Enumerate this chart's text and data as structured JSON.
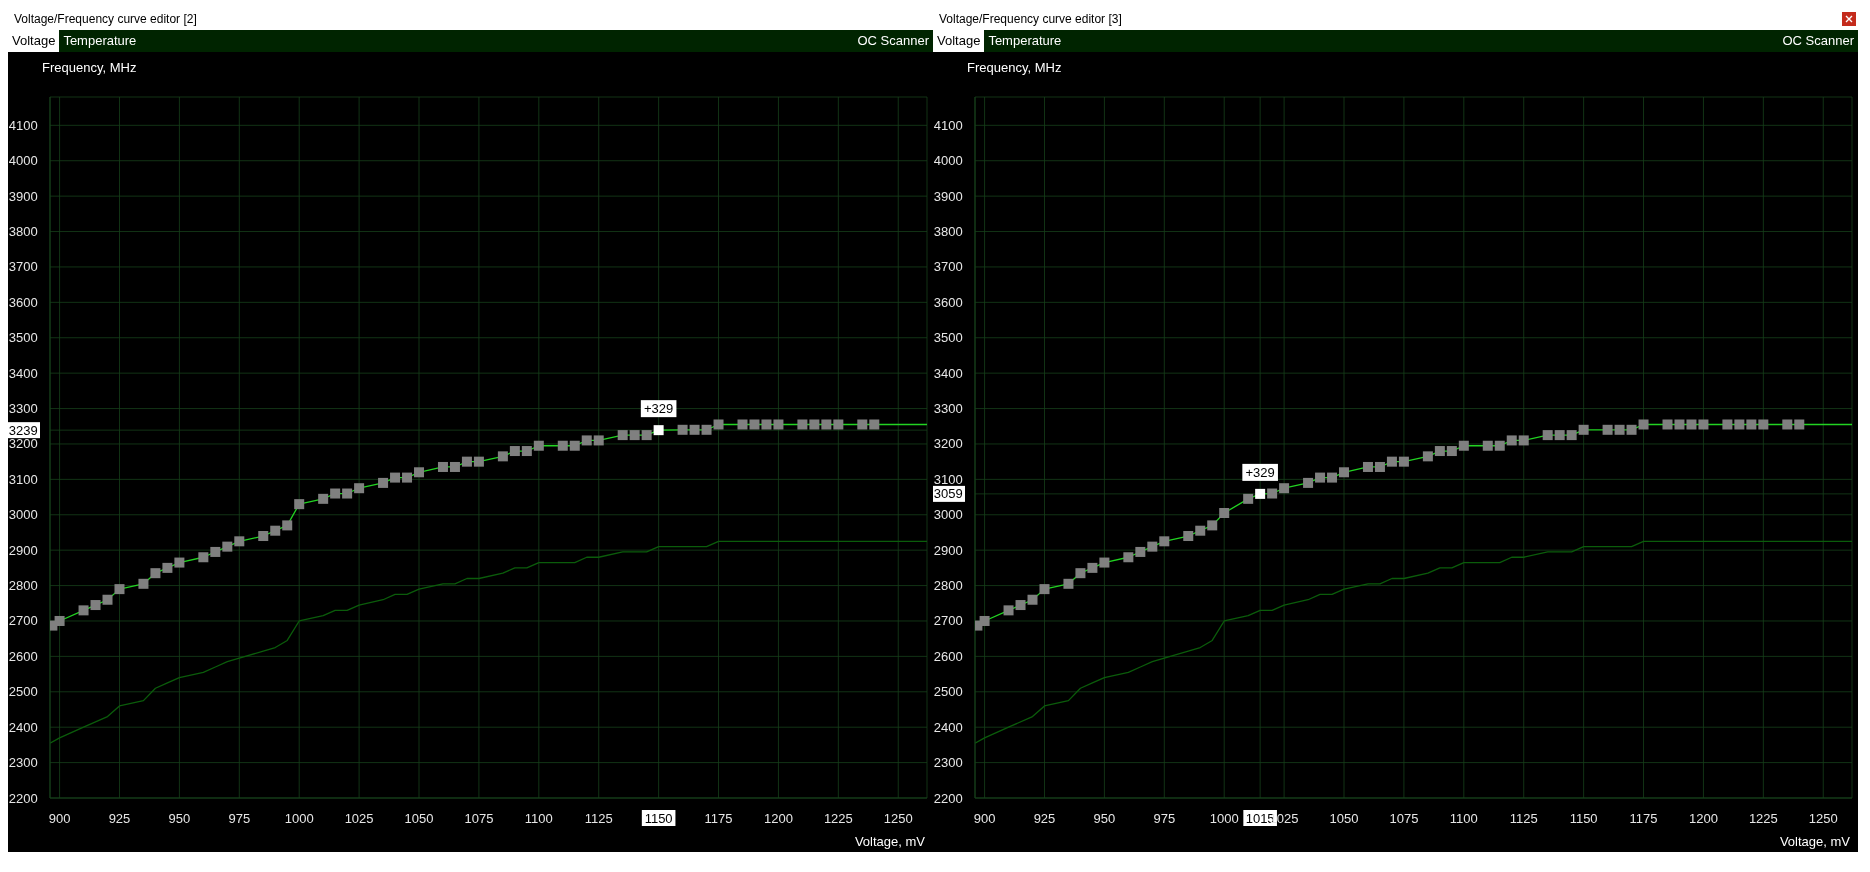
{
  "chart_data": [
    {
      "type": "line",
      "title": "Voltage/Frequency curve editor [2]",
      "xlabel": "Voltage, mV",
      "ylabel": "Frequency, MHz",
      "annotations": [
        "Voltage",
        "Temperature",
        "OC Scanner",
        {
          "text": "+329",
          "x": 1150,
          "y": 3239
        }
      ],
      "xlim": [
        896,
        1262
      ],
      "ylim": [
        2200,
        4180
      ],
      "xticks": [
        900,
        925,
        950,
        975,
        1000,
        1025,
        1050,
        1075,
        1100,
        1125,
        {
          "value": 1150,
          "label": "1150"
        },
        1175,
        1200,
        1225,
        1250
      ],
      "yticks": [
        2200,
        2300,
        2400,
        2500,
        2600,
        2700,
        2800,
        2900,
        3000,
        3100,
        3200,
        {
          "value": 3239,
          "label": "3239"
        },
        3300,
        3400,
        3500,
        3600,
        3700,
        3800,
        3900,
        4000,
        4100
      ],
      "grid": true,
      "series": [
        {
          "type": "line",
          "color": "#0b5c0b",
          "marker": "none",
          "x": [
            896,
            900,
            910,
            920,
            925,
            935,
            940,
            945,
            950,
            960,
            965,
            970,
            975,
            985,
            990,
            995,
            1000,
            1010,
            1015,
            1020,
            1025,
            1035,
            1040,
            1045,
            1050,
            1060,
            1065,
            1070,
            1075,
            1085,
            1090,
            1095,
            1100,
            1115,
            1120,
            1125,
            1135,
            1145,
            1150,
            1170,
            1175,
            1262
          ],
          "values": [
            2355,
            2370,
            2400,
            2430,
            2460,
            2475,
            2510,
            2525,
            2540,
            2555,
            2570,
            2585,
            2595,
            2615,
            2625,
            2645,
            2700,
            2715,
            2730,
            2730,
            2745,
            2760,
            2775,
            2775,
            2790,
            2805,
            2805,
            2820,
            2820,
            2835,
            2850,
            2850,
            2865,
            2865,
            2880,
            2880,
            2895,
            2895,
            2910,
            2910,
            2925,
            2925
          ]
        },
        {
          "type": "line",
          "color": "#22d322",
          "marker": "none",
          "x": [
            897,
            900,
            910,
            915,
            920,
            925,
            935,
            940,
            945,
            950,
            960,
            965,
            970,
            975,
            985,
            990,
            995,
            1000,
            1010,
            1015,
            1020,
            1025,
            1035,
            1040,
            1045,
            1050,
            1060,
            1065,
            1070,
            1075,
            1085,
            1090,
            1095,
            1100,
            1110,
            1115,
            1120,
            1125,
            1135,
            1140,
            1145,
            1150,
            1160,
            1165,
            1170,
            1175,
            1185,
            1190,
            1195,
            1200,
            1210,
            1215,
            1220,
            1225,
            1235,
            1240,
            1262
          ],
          "values": [
            2687,
            2700,
            2730,
            2745,
            2760,
            2790,
            2805,
            2835,
            2850,
            2865,
            2880,
            2895,
            2910,
            2925,
            2940,
            2955,
            2970,
            3030,
            3045,
            3060,
            3060,
            3075,
            3090,
            3105,
            3105,
            3120,
            3135,
            3135,
            3150,
            3150,
            3165,
            3180,
            3180,
            3195,
            3195,
            3195,
            3210,
            3210,
            3225,
            3225,
            3225,
            3239,
            3240,
            3240,
            3240,
            3255,
            3255,
            3255,
            3255,
            3255,
            3255,
            3255,
            3255,
            3255,
            3255,
            3255,
            3255
          ]
        },
        {
          "type": "scatter",
          "color": "#808080",
          "marker": "square",
          "x": [
            897,
            900,
            910,
            915,
            920,
            925,
            935,
            940,
            945,
            950,
            960,
            965,
            970,
            975,
            985,
            990,
            995,
            1000,
            1010,
            1015,
            1020,
            1025,
            1035,
            1040,
            1045,
            1050,
            1060,
            1065,
            1070,
            1075,
            1085,
            1090,
            1095,
            1100,
            1110,
            1115,
            1120,
            1125,
            1135,
            1140,
            1145,
            1160,
            1165,
            1170,
            1175,
            1185,
            1190,
            1195,
            1200,
            1210,
            1215,
            1220,
            1225,
            1235,
            1240
          ],
          "values": [
            2687,
            2700,
            2730,
            2745,
            2760,
            2790,
            2805,
            2835,
            2850,
            2865,
            2880,
            2895,
            2910,
            2925,
            2940,
            2955,
            2970,
            3030,
            3045,
            3060,
            3060,
            3075,
            3090,
            3105,
            3105,
            3120,
            3135,
            3135,
            3150,
            3150,
            3165,
            3180,
            3180,
            3195,
            3195,
            3195,
            3210,
            3210,
            3225,
            3225,
            3225,
            3240,
            3240,
            3240,
            3255,
            3255,
            3255,
            3255,
            3255,
            3255,
            3255,
            3255,
            3255,
            3255,
            3255
          ]
        },
        {
          "type": "scatter",
          "color": "#ffffff",
          "marker": "square",
          "x": [
            1150
          ],
          "values": [
            3239
          ]
        }
      ]
    },
    {
      "type": "line",
      "title": "Voltage/Frequency curve editor [3]",
      "xlabel": "Voltage, mV",
      "ylabel": "Frequency, MHz",
      "annotations": [
        "Voltage",
        "Temperature",
        "OC Scanner",
        {
          "text": "+329",
          "x": 1015,
          "y": 3059
        }
      ],
      "xlim": [
        896,
        1262
      ],
      "ylim": [
        2200,
        4180
      ],
      "xticks": [
        900,
        925,
        950,
        975,
        1000,
        {
          "value": 1015,
          "label": "1015"
        },
        1025,
        1050,
        1075,
        1100,
        1125,
        1150,
        1175,
        1200,
        1225,
        1250
      ],
      "yticks": [
        2200,
        2300,
        2400,
        2500,
        2600,
        2700,
        2800,
        2900,
        3000,
        {
          "value": 3059,
          "label": "3059"
        },
        3100,
        3200,
        3300,
        3400,
        3500,
        3600,
        3700,
        3800,
        3900,
        4000,
        4100
      ],
      "grid": true,
      "series": [
        {
          "type": "line",
          "color": "#0b5c0b",
          "marker": "none",
          "x": [
            896,
            900,
            910,
            920,
            925,
            935,
            940,
            945,
            950,
            960,
            965,
            970,
            975,
            985,
            990,
            995,
            1000,
            1010,
            1015,
            1020,
            1025,
            1035,
            1040,
            1045,
            1050,
            1060,
            1065,
            1070,
            1075,
            1085,
            1090,
            1095,
            1100,
            1115,
            1120,
            1125,
            1135,
            1145,
            1150,
            1170,
            1175,
            1262
          ],
          "values": [
            2355,
            2370,
            2400,
            2430,
            2460,
            2475,
            2510,
            2525,
            2540,
            2555,
            2570,
            2585,
            2595,
            2615,
            2625,
            2645,
            2700,
            2715,
            2730,
            2730,
            2745,
            2760,
            2775,
            2775,
            2790,
            2805,
            2805,
            2820,
            2820,
            2835,
            2850,
            2850,
            2865,
            2865,
            2880,
            2880,
            2895,
            2895,
            2910,
            2910,
            2925,
            2925
          ]
        },
        {
          "type": "line",
          "color": "#22d322",
          "marker": "none",
          "x": [
            897,
            900,
            910,
            915,
            920,
            925,
            935,
            940,
            945,
            950,
            960,
            965,
            970,
            975,
            985,
            990,
            995,
            1000,
            1010,
            1015,
            1020,
            1025,
            1035,
            1040,
            1045,
            1050,
            1060,
            1065,
            1070,
            1075,
            1085,
            1090,
            1095,
            1100,
            1110,
            1115,
            1120,
            1125,
            1135,
            1140,
            1145,
            1150,
            1160,
            1165,
            1170,
            1175,
            1185,
            1190,
            1195,
            1200,
            1210,
            1215,
            1220,
            1225,
            1235,
            1240,
            1262
          ],
          "values": [
            2687,
            2700,
            2730,
            2745,
            2760,
            2790,
            2805,
            2835,
            2850,
            2865,
            2880,
            2895,
            2910,
            2925,
            2940,
            2955,
            2970,
            3005,
            3045,
            3059,
            3060,
            3075,
            3090,
            3105,
            3105,
            3120,
            3135,
            3135,
            3150,
            3150,
            3165,
            3180,
            3180,
            3195,
            3195,
            3195,
            3210,
            3210,
            3225,
            3225,
            3225,
            3240,
            3240,
            3240,
            3240,
            3255,
            3255,
            3255,
            3255,
            3255,
            3255,
            3255,
            3255,
            3255,
            3255,
            3255,
            3255
          ]
        },
        {
          "type": "scatter",
          "color": "#808080",
          "marker": "square",
          "x": [
            897,
            900,
            910,
            915,
            920,
            925,
            935,
            940,
            945,
            950,
            960,
            965,
            970,
            975,
            985,
            990,
            995,
            1000,
            1010,
            1020,
            1025,
            1035,
            1040,
            1045,
            1050,
            1060,
            1065,
            1070,
            1075,
            1085,
            1090,
            1095,
            1100,
            1110,
            1115,
            1120,
            1125,
            1135,
            1140,
            1145,
            1150,
            1160,
            1165,
            1170,
            1175,
            1185,
            1190,
            1195,
            1200,
            1210,
            1215,
            1220,
            1225,
            1235,
            1240
          ],
          "values": [
            2687,
            2700,
            2730,
            2745,
            2760,
            2790,
            2805,
            2835,
            2850,
            2865,
            2880,
            2895,
            2910,
            2925,
            2940,
            2955,
            2970,
            3005,
            3045,
            3060,
            3075,
            3090,
            3105,
            3105,
            3120,
            3135,
            3135,
            3150,
            3150,
            3165,
            3180,
            3180,
            3195,
            3195,
            3195,
            3210,
            3210,
            3225,
            3225,
            3225,
            3240,
            3240,
            3240,
            3240,
            3255,
            3255,
            3255,
            3255,
            3255,
            3255,
            3255,
            3255,
            3255,
            3255,
            3255
          ]
        },
        {
          "type": "scatter",
          "color": "#ffffff",
          "marker": "square",
          "x": [
            1015
          ],
          "values": [
            3059
          ]
        }
      ]
    }
  ]
}
